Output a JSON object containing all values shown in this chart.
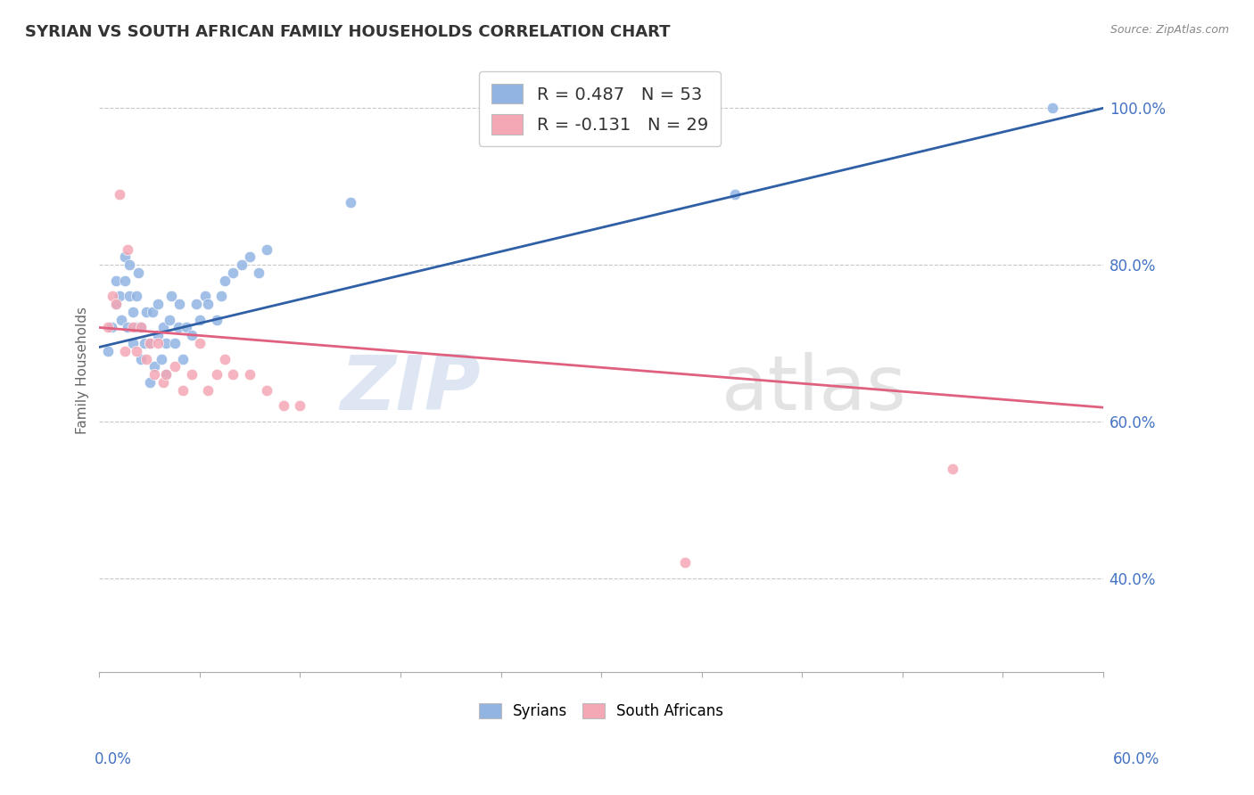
{
  "title": "SYRIAN VS SOUTH AFRICAN FAMILY HOUSEHOLDS CORRELATION CHART",
  "source": "Source: ZipAtlas.com",
  "ylabel": "Family Households",
  "xmin": 0.0,
  "xmax": 0.6,
  "ymin": 0.28,
  "ymax": 1.05,
  "yticks": [
    0.4,
    0.6,
    0.8,
    1.0
  ],
  "ytick_labels": [
    "40.0%",
    "60.0%",
    "80.0%",
    "100.0%"
  ],
  "series1_name": "Syrians",
  "series1_color": "#92b4e3",
  "series1_R": 0.487,
  "series1_N": 53,
  "series1_line_color": "#2f5fa5",
  "series1_trend_x0": 0.0,
  "series1_trend_y0": 0.695,
  "series1_trend_x1": 0.6,
  "series1_trend_y1": 1.0,
  "series2_name": "South Africans",
  "series2_color": "#f4a7b5",
  "series2_R": -0.131,
  "series2_N": 29,
  "series2_line_color": "#e06080",
  "series2_trend_x0": 0.0,
  "series2_trend_y0": 0.72,
  "series2_trend_x1": 0.6,
  "series2_trend_y1": 0.618,
  "background_color": "#ffffff",
  "grid_color": "#c8c8c8",
  "syrians_x": [
    0.005,
    0.007,
    0.01,
    0.01,
    0.012,
    0.013,
    0.015,
    0.015,
    0.017,
    0.018,
    0.018,
    0.02,
    0.02,
    0.022,
    0.022,
    0.023,
    0.025,
    0.025,
    0.027,
    0.028,
    0.03,
    0.03,
    0.032,
    0.033,
    0.035,
    0.035,
    0.037,
    0.038,
    0.04,
    0.04,
    0.042,
    0.043,
    0.045,
    0.047,
    0.048,
    0.05,
    0.052,
    0.055,
    0.058,
    0.06,
    0.063,
    0.065,
    0.07,
    0.073,
    0.075,
    0.08,
    0.085,
    0.09,
    0.095,
    0.1,
    0.15,
    0.38,
    0.57
  ],
  "syrians_y": [
    0.69,
    0.72,
    0.75,
    0.78,
    0.76,
    0.73,
    0.78,
    0.81,
    0.72,
    0.76,
    0.8,
    0.7,
    0.74,
    0.72,
    0.76,
    0.79,
    0.68,
    0.72,
    0.7,
    0.74,
    0.65,
    0.7,
    0.74,
    0.67,
    0.71,
    0.75,
    0.68,
    0.72,
    0.66,
    0.7,
    0.73,
    0.76,
    0.7,
    0.72,
    0.75,
    0.68,
    0.72,
    0.71,
    0.75,
    0.73,
    0.76,
    0.75,
    0.73,
    0.76,
    0.78,
    0.79,
    0.8,
    0.81,
    0.79,
    0.82,
    0.88,
    0.89,
    1.0
  ],
  "southafricans_x": [
    0.005,
    0.008,
    0.01,
    0.012,
    0.015,
    0.017,
    0.02,
    0.022,
    0.025,
    0.028,
    0.03,
    0.033,
    0.035,
    0.038,
    0.04,
    0.045,
    0.05,
    0.055,
    0.06,
    0.065,
    0.07,
    0.075,
    0.08,
    0.09,
    0.1,
    0.11,
    0.12,
    0.35,
    0.51
  ],
  "southafricans_y": [
    0.72,
    0.76,
    0.75,
    0.89,
    0.69,
    0.82,
    0.72,
    0.69,
    0.72,
    0.68,
    0.7,
    0.66,
    0.7,
    0.65,
    0.66,
    0.67,
    0.64,
    0.66,
    0.7,
    0.64,
    0.66,
    0.68,
    0.66,
    0.66,
    0.64,
    0.62,
    0.62,
    0.42,
    0.54
  ]
}
